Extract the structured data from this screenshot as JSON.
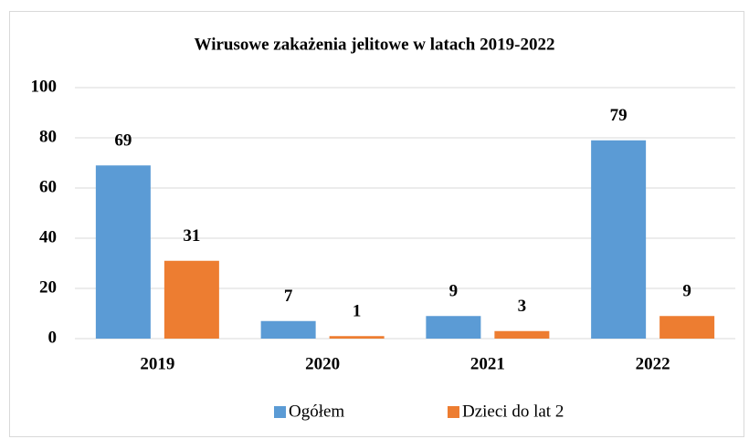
{
  "chart_data": {
    "type": "bar",
    "title": "Wirusowe zakażenia jelitowe w latach 2019-2022",
    "categories": [
      "2019",
      "2020",
      "2021",
      "2022"
    ],
    "series": [
      {
        "name": "Ogółem",
        "color": "#5b9bd5",
        "values": [
          69,
          7,
          9,
          79
        ]
      },
      {
        "name": "Dzieci do lat 2",
        "color": "#ed7d31",
        "values": [
          31,
          1,
          3,
          9
        ]
      }
    ],
    "ylim": [
      0,
      100
    ],
    "yticks": [
      0,
      20,
      40,
      60,
      80,
      100
    ],
    "grid": true,
    "legend": "bottom"
  }
}
